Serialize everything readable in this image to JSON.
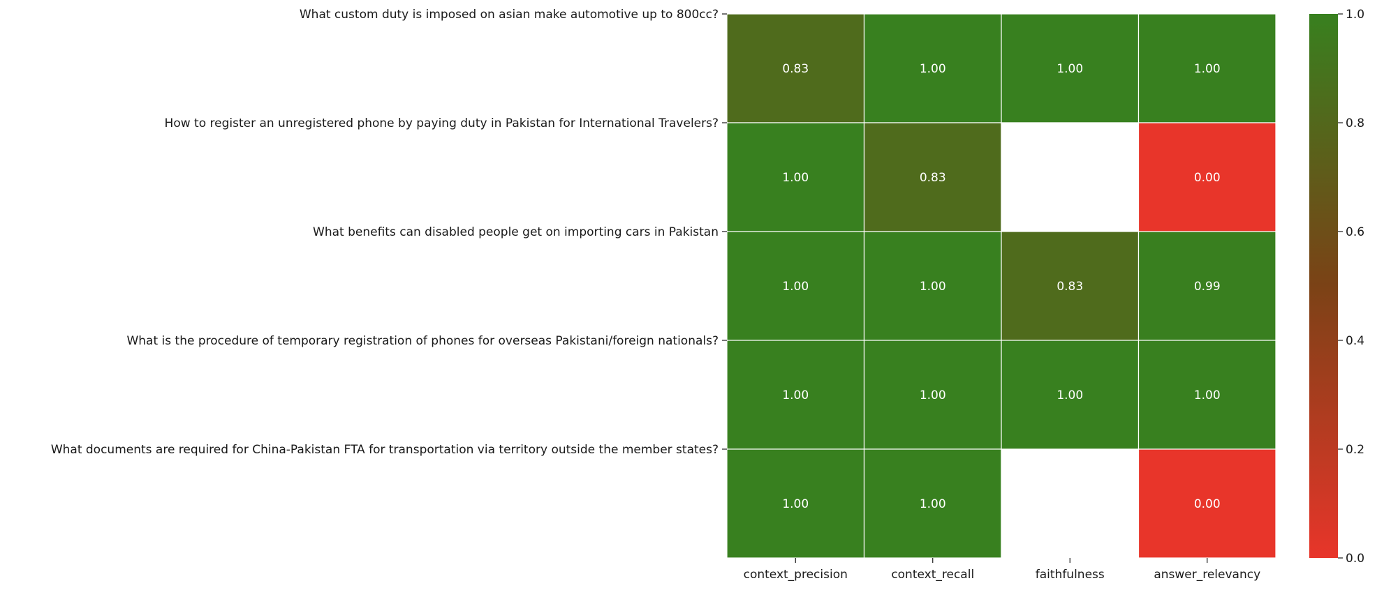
{
  "chart_data": {
    "type": "heatmap",
    "title": "",
    "xlabel": "",
    "ylabel": "",
    "columns": [
      "context_precision",
      "context_recall",
      "faithfulness",
      "answer_relevancy"
    ],
    "rows": [
      "What custom duty is imposed on asian make automotive up to 800cc?",
      "How to register an unregistered phone by paying duty in Pakistan for International Travelers?",
      "What benefits can disabled people get on importing cars in Pakistan",
      "What is the procedure of temporary registration of phones for overseas Pakistani/foreign nationals?",
      "What documents are required for China-Pakistan FTA for transportation via territory outside the member states?"
    ],
    "values": [
      [
        0.83,
        1.0,
        1.0,
        1.0
      ],
      [
        1.0,
        0.83,
        null,
        0.0
      ],
      [
        1.0,
        1.0,
        0.83,
        0.99
      ],
      [
        1.0,
        1.0,
        1.0,
        1.0
      ],
      [
        1.0,
        1.0,
        null,
        0.0
      ]
    ],
    "value_labels": [
      [
        "0.83",
        "1.00",
        "1.00",
        "1.00"
      ],
      [
        "1.00",
        "0.83",
        "",
        "0.00"
      ],
      [
        "1.00",
        "1.00",
        "0.83",
        "0.99"
      ],
      [
        "1.00",
        "1.00",
        "1.00",
        "1.00"
      ],
      [
        "1.00",
        "1.00",
        "",
        "0.00"
      ]
    ],
    "colorbar": {
      "range": [
        0.0,
        1.0
      ],
      "ticks": [
        "0.0",
        "0.2",
        "0.4",
        "0.6",
        "0.8",
        "1.0"
      ],
      "colors": [
        "#e8352a",
        "#7b4216",
        "#38801f"
      ]
    },
    "missing_color": "#ffffff",
    "grid": true
  }
}
